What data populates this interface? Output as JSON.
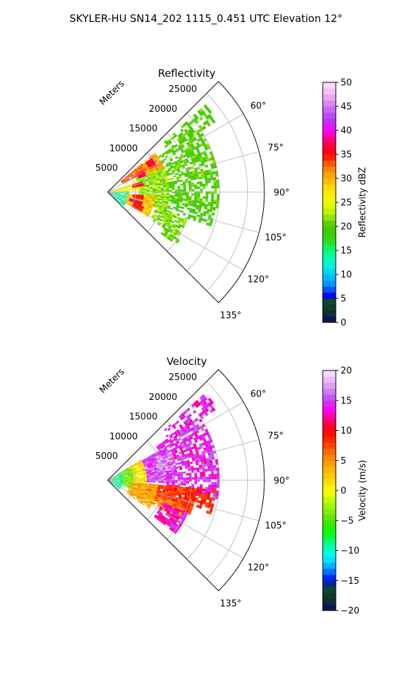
{
  "figure": {
    "title": "SKYLER-HU  SN14_202  1115_0.451 UTC Elevation 12°"
  },
  "chart_data": [
    {
      "type": "heatmap",
      "title": "Reflectivity",
      "projection": "polar-sector",
      "range_label": "Meters",
      "range_ticks": [
        5000,
        10000,
        15000,
        20000,
        25000
      ],
      "range_tick_labels": [
        "5000",
        "10000",
        "15000",
        "20000",
        "25000"
      ],
      "rlim": [
        0,
        28000
      ],
      "azimuth_range_deg": [
        45,
        135
      ],
      "azimuth_ticks": [
        60,
        75,
        90,
        105,
        120,
        135
      ],
      "azimuth_tick_labels": [
        "60°",
        "75°",
        "90°",
        "105°",
        "120°",
        "135°"
      ],
      "grid": true,
      "colorbar": {
        "label": "Reflectivity dBZ",
        "min": 0,
        "max": 50,
        "ticks": [
          0,
          5,
          10,
          15,
          20,
          25,
          30,
          35,
          40,
          45,
          50
        ],
        "tick_labels": [
          "0",
          "5",
          "10",
          "15",
          "20",
          "25",
          "30",
          "35",
          "40",
          "45",
          "50"
        ],
        "colormap": "NWSRef",
        "stops": [
          {
            "v": 0,
            "c": "#0c0a5a"
          },
          {
            "v": 2.5,
            "c": "#0d3a2a"
          },
          {
            "v": 4.5,
            "c": "#0b4a34"
          },
          {
            "v": 5.5,
            "c": "#0000ff"
          },
          {
            "v": 8,
            "c": "#0096ff"
          },
          {
            "v": 10,
            "c": "#00c8ff"
          },
          {
            "v": 12.5,
            "c": "#00ffd2"
          },
          {
            "v": 15,
            "c": "#00ff78"
          },
          {
            "v": 17.5,
            "c": "#3cd200"
          },
          {
            "v": 20,
            "c": "#40c800"
          },
          {
            "v": 22.5,
            "c": "#aaf000"
          },
          {
            "v": 25,
            "c": "#f0ff00"
          },
          {
            "v": 27.5,
            "c": "#ffe600"
          },
          {
            "v": 30,
            "c": "#ffb400"
          },
          {
            "v": 32.5,
            "c": "#ff7800"
          },
          {
            "v": 35,
            "c": "#ff0000"
          },
          {
            "v": 37.5,
            "c": "#ff0050"
          },
          {
            "v": 40,
            "c": "#ff00ff"
          },
          {
            "v": 42.5,
            "c": "#b43cff"
          },
          {
            "v": 45,
            "c": "#d278f0"
          },
          {
            "v": 47.5,
            "c": "#f0b4f0"
          },
          {
            "v": 50,
            "c": "#ffe6ff"
          }
        ]
      },
      "echo_regions": [
        {
          "az": [
            48,
            57
          ],
          "r": [
            13000,
            23500
          ],
          "value": 20,
          "density": 0.55
        },
        {
          "az": [
            55,
            100
          ],
          "r": [
            10500,
            20000
          ],
          "value": 20,
          "density": 0.65
        },
        {
          "az": [
            95,
            108
          ],
          "r": [
            11000,
            19500
          ],
          "value": 19,
          "density": 0.45
        },
        {
          "az": [
            60,
            108
          ],
          "r": [
            5500,
            11000
          ],
          "value": 22,
          "density": 0.9
        },
        {
          "az": [
            108,
            123
          ],
          "r": [
            9000,
            15000
          ],
          "value": 21,
          "density": 0.75
        },
        {
          "az": [
            122,
            128
          ],
          "r": [
            12000,
            15500
          ],
          "value": 20,
          "density": 0.75
        },
        {
          "az": [
            50,
            66
          ],
          "r": [
            6000,
            11000
          ],
          "value": 30,
          "density": 0.95
        },
        {
          "az": [
            50,
            62
          ],
          "r": [
            3000,
            8000
          ],
          "value": 33,
          "density": 0.95
        },
        {
          "az": [
            70,
            88
          ],
          "r": [
            300,
            5500
          ],
          "value": 26,
          "density": 0.85
        },
        {
          "az": [
            88,
            132
          ],
          "r": [
            300,
            3500
          ],
          "value": 14,
          "density": 0.85
        },
        {
          "az": [
            95,
            122
          ],
          "r": [
            3500,
            8500
          ],
          "value": 29,
          "density": 0.95
        },
        {
          "az": [
            58,
            66
          ],
          "r": [
            6000,
            7500
          ],
          "value": 37,
          "density": 1
        },
        {
          "az": [
            52,
            60
          ],
          "r": [
            8500,
            10000
          ],
          "value": 37,
          "density": 1
        },
        {
          "az": [
            73,
            80
          ],
          "r": [
            4500,
            6500
          ],
          "value": 36,
          "density": 1
        },
        {
          "az": [
            95,
            102
          ],
          "r": [
            4500,
            6500
          ],
          "value": 36,
          "density": 1
        },
        {
          "az": [
            105,
            112
          ],
          "r": [
            4000,
            6500
          ],
          "value": 37,
          "density": 1
        },
        {
          "az": [
            112,
            120
          ],
          "r": [
            5000,
            7000
          ],
          "value": 36,
          "density": 1
        }
      ]
    },
    {
      "type": "heatmap",
      "title": "Velocity",
      "projection": "polar-sector",
      "range_label": "Meters",
      "range_ticks": [
        5000,
        10000,
        15000,
        20000,
        25000
      ],
      "range_tick_labels": [
        "5000",
        "10000",
        "15000",
        "20000",
        "25000"
      ],
      "rlim": [
        0,
        28000
      ],
      "azimuth_range_deg": [
        45,
        135
      ],
      "azimuth_ticks": [
        60,
        75,
        90,
        105,
        120,
        135
      ],
      "azimuth_tick_labels": [
        "60°",
        "75°",
        "90°",
        "105°",
        "120°",
        "135°"
      ],
      "grid": true,
      "colorbar": {
        "label": "Velocity (m/s)",
        "min": -20,
        "max": 20,
        "ticks": [
          -20,
          -15,
          -10,
          -5,
          0,
          5,
          10,
          15,
          20
        ],
        "tick_labels": [
          "−20",
          "−15",
          "−10",
          "−5",
          "0",
          "5",
          "10",
          "15",
          "20"
        ],
        "colormap": "NWSVel",
        "stops": [
          {
            "v": -20,
            "c": "#0c0a5a"
          },
          {
            "v": -18,
            "c": "#0d3a2a"
          },
          {
            "v": -16,
            "c": "#0b4a34"
          },
          {
            "v": -15,
            "c": "#0000ff"
          },
          {
            "v": -13,
            "c": "#0096ff"
          },
          {
            "v": -11,
            "c": "#00ffff"
          },
          {
            "v": -9,
            "c": "#00ffa0"
          },
          {
            "v": -7,
            "c": "#00ff00"
          },
          {
            "v": -5,
            "c": "#50e000"
          },
          {
            "v": -2,
            "c": "#aaff00"
          },
          {
            "v": 0,
            "c": "#ffff00"
          },
          {
            "v": 2,
            "c": "#ffd200"
          },
          {
            "v": 4,
            "c": "#ffaa00"
          },
          {
            "v": 6,
            "c": "#ff7800"
          },
          {
            "v": 8,
            "c": "#ff3200"
          },
          {
            "v": 10,
            "c": "#ff0000"
          },
          {
            "v": 12,
            "c": "#ff0080"
          },
          {
            "v": 13.5,
            "c": "#ff00ff"
          },
          {
            "v": 15,
            "c": "#c040ff"
          },
          {
            "v": 17,
            "c": "#d890f0"
          },
          {
            "v": 20,
            "c": "#ffe6ff"
          }
        ]
      },
      "echo_regions": [
        {
          "az": [
            48,
            57
          ],
          "r": [
            13000,
            23500
          ],
          "value": 14,
          "density": 0.55
        },
        {
          "az": [
            55,
            100
          ],
          "r": [
            10500,
            20000
          ],
          "value": 14,
          "density": 0.7
        },
        {
          "az": [
            60,
            92
          ],
          "r": [
            6500,
            12000
          ],
          "value": 15,
          "density": 0.95
        },
        {
          "az": [
            66,
            80
          ],
          "r": [
            9000,
            12500
          ],
          "value": 17,
          "density": 0.7
        },
        {
          "az": [
            95,
            112
          ],
          "r": [
            6000,
            16000
          ],
          "value": 8,
          "density": 0.95
        },
        {
          "az": [
            108,
            118
          ],
          "r": [
            8000,
            14500
          ],
          "value": 5,
          "density": 0.85
        },
        {
          "az": [
            112,
            128
          ],
          "r": [
            10500,
            15500
          ],
          "value": 13,
          "density": 0.85
        },
        {
          "az": [
            95,
            108
          ],
          "r": [
            14000,
            19500
          ],
          "value": 9,
          "density": 0.45
        },
        {
          "az": [
            58,
            120
          ],
          "r": [
            4000,
            7000
          ],
          "value": 1,
          "density": 0.95
        },
        {
          "az": [
            58,
            110
          ],
          "r": [
            2200,
            4500
          ],
          "value": -4,
          "density": 0.95
        },
        {
          "az": [
            60,
            128
          ],
          "r": [
            200,
            2500
          ],
          "value": -9,
          "density": 0.95
        },
        {
          "az": [
            95,
            125
          ],
          "r": [
            4000,
            9000
          ],
          "value": 4,
          "density": 0.9
        }
      ]
    }
  ]
}
